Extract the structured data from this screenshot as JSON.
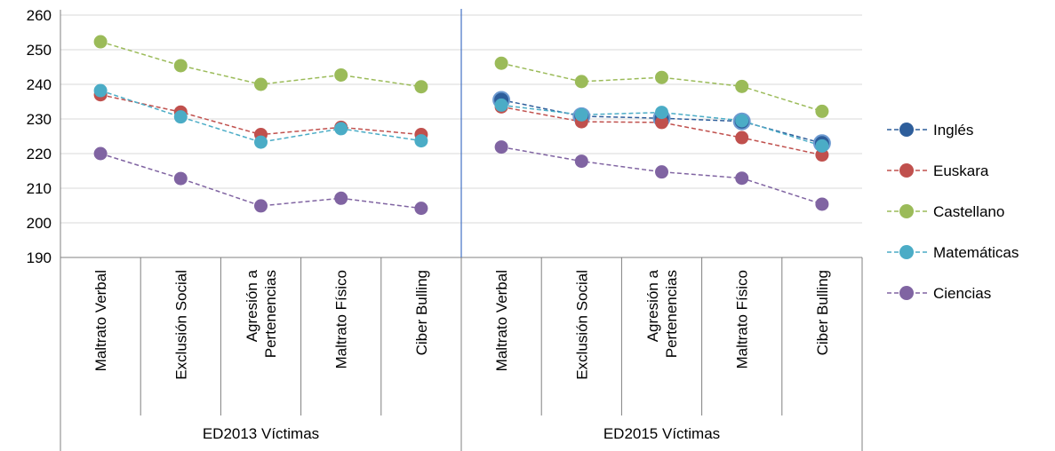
{
  "chart_data": {
    "type": "line",
    "groups": [
      {
        "label": "ED2013 Víctimas",
        "categories": [
          [
            "Maltrato Verbal"
          ],
          [
            "Exclusión Social"
          ],
          [
            "Agresión a",
            "Pertenencias"
          ],
          [
            "Maltrato Físico"
          ],
          [
            "Ciber Bulling"
          ]
        ]
      },
      {
        "label": "ED2015 Víctimas",
        "categories": [
          [
            "Maltrato Verbal"
          ],
          [
            "Exclusión Social"
          ],
          [
            "Agresión a",
            "Pertenencias"
          ],
          [
            "Maltrato Físico"
          ],
          [
            "Ciber Bulling"
          ]
        ]
      }
    ],
    "ylim": [
      190,
      260
    ],
    "yticks": [
      190,
      200,
      210,
      220,
      230,
      240,
      250,
      260
    ],
    "grid": true,
    "legend_position": "right",
    "line_style": "dashed",
    "series": [
      {
        "name": "Inglés",
        "color": "#2E5E9B",
        "values": [
          null,
          null,
          null,
          null,
          null,
          235.5,
          230.8,
          230.2,
          229.3,
          223.0
        ]
      },
      {
        "name": "Euskara",
        "color": "#C0504D",
        "values": [
          237.0,
          232.0,
          225.5,
          227.6,
          225.5,
          233.5,
          229.2,
          229.0,
          224.6,
          219.6
        ]
      },
      {
        "name": "Castellano",
        "color": "#9BBB59",
        "values": [
          252.3,
          245.4,
          240.0,
          242.7,
          239.3,
          246.1,
          240.8,
          242.0,
          239.4,
          232.2
        ]
      },
      {
        "name": "Matemáticas",
        "color": "#4BACC6",
        "values": [
          238.2,
          230.6,
          223.3,
          227.2,
          223.7,
          234.0,
          231.2,
          231.9,
          229.5,
          222.2
        ]
      },
      {
        "name": "Ciencias",
        "color": "#8064A2",
        "values": [
          220.0,
          212.8,
          204.9,
          207.1,
          204.2,
          221.9,
          217.8,
          214.7,
          212.9,
          205.4
        ]
      }
    ]
  }
}
